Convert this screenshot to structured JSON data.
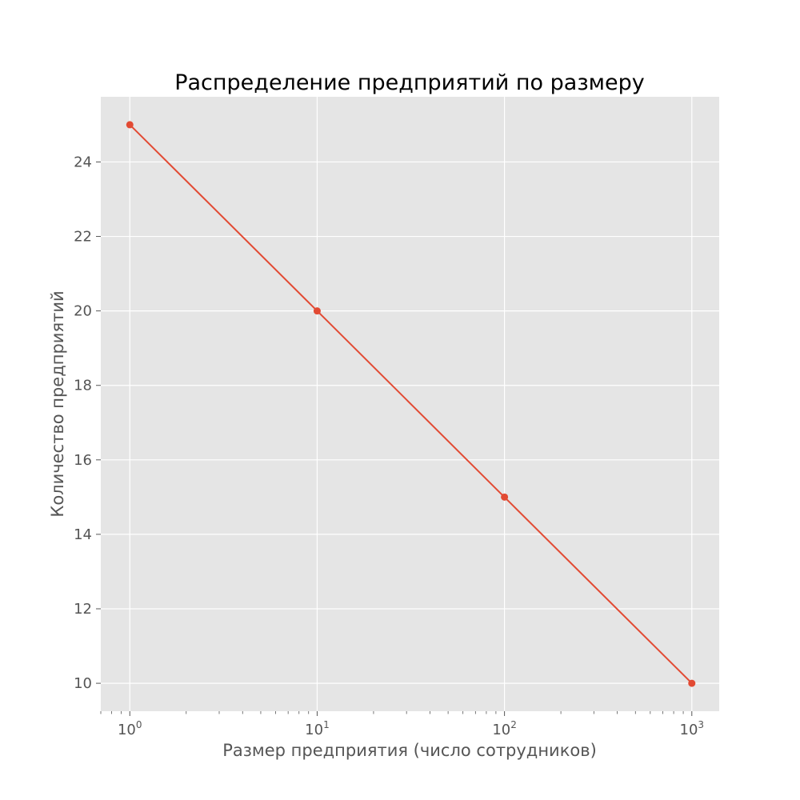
{
  "chart_data": {
    "type": "line",
    "title": "Распределение предприятий по размеру",
    "xlabel": "Размер предприятия (число сотрудников)",
    "ylabel": "Количество предприятий",
    "xscale": "log",
    "x": [
      1,
      10,
      100,
      1000
    ],
    "series": [
      {
        "values": [
          25,
          20,
          15,
          10
        ],
        "color": "#e24a33",
        "marker": "circle"
      }
    ],
    "xlim": [
      0.7,
      1400
    ],
    "ylim": [
      9.25,
      25.75
    ],
    "xticks": [
      {
        "value": 1,
        "base": "10",
        "exp": "0"
      },
      {
        "value": 10,
        "base": "10",
        "exp": "1"
      },
      {
        "value": 100,
        "base": "10",
        "exp": "2"
      },
      {
        "value": 1000,
        "base": "10",
        "exp": "3"
      }
    ],
    "yticks": [
      "10",
      "12",
      "14",
      "16",
      "18",
      "20",
      "22",
      "24"
    ],
    "grid": true,
    "background": "#e5e5e5",
    "grid_color": "#ffffff"
  }
}
